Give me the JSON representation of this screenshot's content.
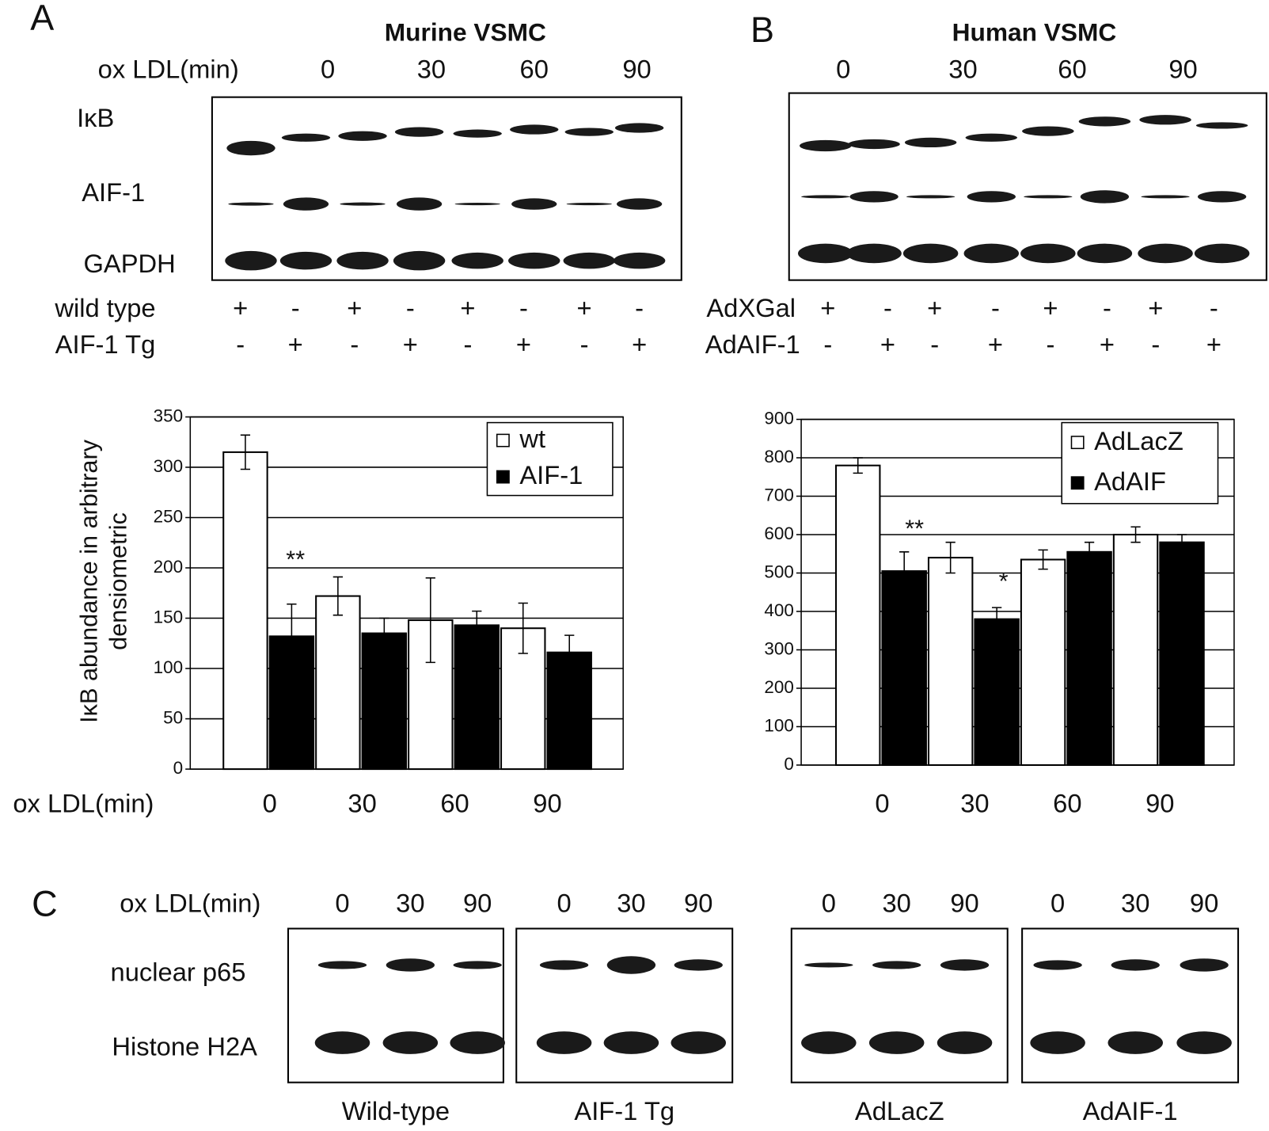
{
  "panel_labels": [
    "A",
    "B",
    "C"
  ],
  "blot_a": {
    "title": "Murine VSMC",
    "time_label": "ox LDL(min)",
    "times": [
      "0",
      "30",
      "60",
      "90"
    ],
    "rows": [
      "IκB",
      "AIF-1",
      "GAPDH"
    ],
    "conditions": [
      {
        "label": "wild type",
        "signs": [
          "+",
          "-",
          "+",
          "-",
          "+",
          "-",
          "+",
          "-"
        ]
      },
      {
        "label": "AIF-1 Tg",
        "signs": [
          "-",
          "+",
          "-",
          "+",
          "-",
          "+",
          "-",
          "+"
        ]
      }
    ]
  },
  "blot_b": {
    "title": "Human VSMC",
    "times": [
      "0",
      "30",
      "60",
      "90"
    ],
    "conditions": [
      {
        "label": "AdXGal",
        "signs": [
          "+",
          "-",
          "+",
          "-",
          "+",
          "-",
          "+",
          "-"
        ]
      },
      {
        "label": "AdAIF-1",
        "signs": [
          "-",
          "+",
          "-",
          "+",
          "-",
          "+",
          "-",
          "+"
        ]
      }
    ]
  },
  "blot_c": {
    "time_label": "ox LDL(min)",
    "rows": [
      "nuclear p65",
      "Histone H2A"
    ],
    "groups": [
      {
        "label": "Wild-type",
        "times": [
          "0",
          "30",
          "90"
        ]
      },
      {
        "label": "AIF-1 Tg",
        "times": [
          "0",
          "30",
          "90"
        ]
      },
      {
        "label": "AdLacZ",
        "times": [
          "0",
          "30",
          "90"
        ]
      },
      {
        "label": "AdAIF-1",
        "times": [
          "0",
          "30",
          "90"
        ]
      }
    ]
  },
  "chart_data": [
    {
      "type": "bar",
      "y_label": [
        "IκB abundance in arbitrary",
        "densiometric"
      ],
      "x_label": "ox LDL(min)",
      "categories": [
        "0",
        "30",
        "60",
        "90"
      ],
      "series": [
        {
          "name": "wt",
          "color": "#ffffff",
          "values": [
            315,
            172,
            148,
            140
          ],
          "errors": [
            17,
            19,
            42,
            25
          ]
        },
        {
          "name": "AIF-1",
          "color": "#000000",
          "values": [
            132,
            135,
            143,
            116
          ],
          "errors": [
            32,
            15,
            14,
            17
          ]
        }
      ],
      "ylim": [
        0,
        350
      ],
      "yticks": [
        0,
        50,
        100,
        150,
        200,
        250,
        300,
        350
      ],
      "grid": true,
      "legend": "upper right",
      "annotations": [
        "**"
      ]
    },
    {
      "type": "bar",
      "categories": [
        "0",
        "30",
        "60",
        "90"
      ],
      "series": [
        {
          "name": "AdLacZ",
          "color": "#ffffff",
          "values": [
            780,
            540,
            535,
            600
          ],
          "errors": [
            20,
            40,
            25,
            20
          ]
        },
        {
          "name": "AdAIF",
          "color": "#000000",
          "values": [
            505,
            380,
            555,
            580
          ],
          "errors": [
            50,
            30,
            25,
            20
          ]
        }
      ],
      "ylim": [
        0,
        900
      ],
      "yticks": [
        0,
        100,
        200,
        300,
        400,
        500,
        600,
        700,
        800,
        900
      ],
      "grid": true,
      "legend": "upper right",
      "annotations": [
        "**",
        "*"
      ]
    }
  ]
}
